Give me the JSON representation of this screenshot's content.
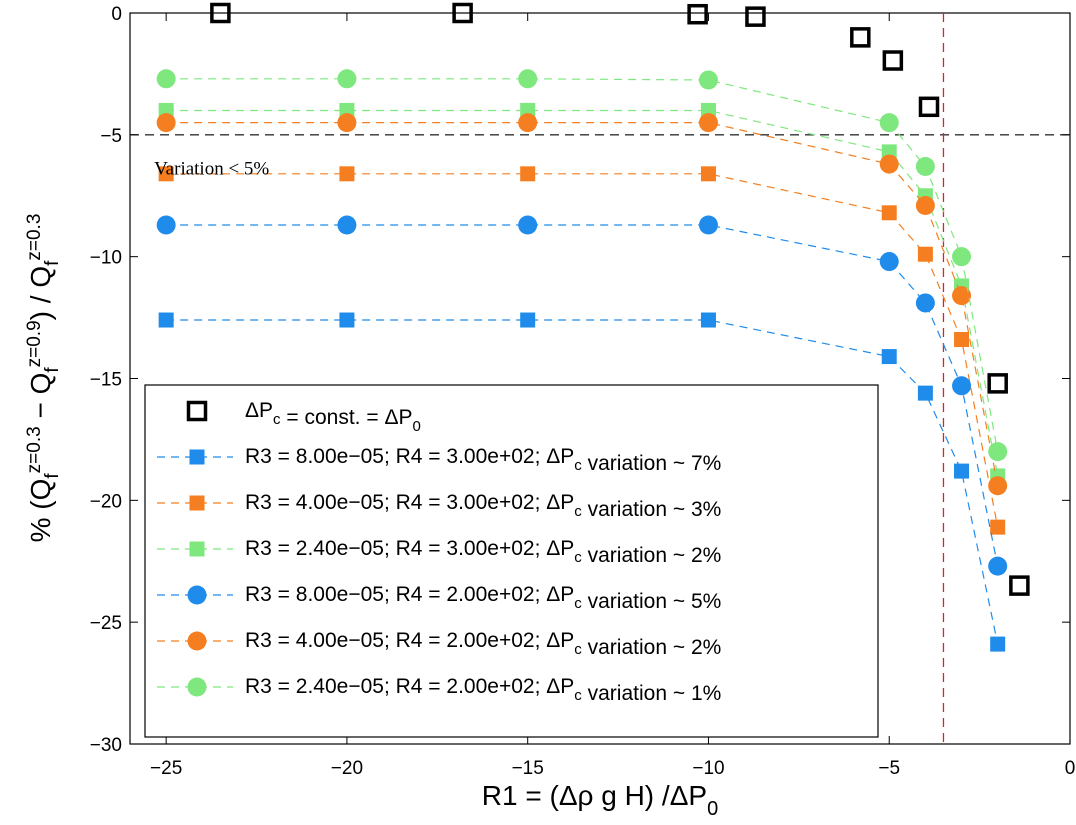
{
  "chart_data": {
    "type": "scatter",
    "xlabel": "R1 = (Δρ g H) /ΔP₀",
    "ylabel": "% (Qf z=0.3 − Qf z=0.9) / Qf z=0.3",
    "xlim": [
      -26,
      0
    ],
    "ylim": [
      -30,
      0
    ],
    "x_ticks": [
      -25,
      -20,
      -15,
      -10,
      -5,
      0
    ],
    "y_ticks": [
      0,
      -5,
      -10,
      -15,
      -20,
      -25,
      -30
    ],
    "x_tick_labels": [
      "−25",
      "−20",
      "−15",
      "−10",
      "−5",
      "0"
    ],
    "y_tick_labels": [
      "0",
      "−5",
      "−10",
      "−15",
      "−20",
      "−25",
      "−30"
    ],
    "grid": false,
    "legend_position": "bottom-left",
    "annotations": [
      {
        "text": "Variation < 5%",
        "x": -25.5,
        "y": -5.8
      }
    ],
    "reference_lines": [
      {
        "orientation": "horizontal",
        "value": -5,
        "color": "#333333",
        "style": "dashed"
      },
      {
        "orientation": "vertical",
        "value": -3.5,
        "color": "#d62728",
        "style": "dashed"
      }
    ],
    "series": [
      {
        "name": "ΔPc = const. = ΔP0",
        "marker": "open-square",
        "color": "#000000",
        "line": false,
        "x": [
          -23.5,
          -16.8,
          -10.3,
          -8.7,
          -5.8,
          -4.9,
          -3.9,
          -2.0,
          -1.4
        ],
        "y": [
          0.0,
          0.0,
          -0.05,
          -0.15,
          -1.0,
          -1.95,
          -3.85,
          -15.2,
          -23.5
        ]
      },
      {
        "name": "R3 = 8.00e−05; R4 = 3.00e+02; ΔPc variation ~ 7%",
        "marker": "square",
        "color": "#1f8ceb",
        "x": [
          -25,
          -20,
          -15,
          -10,
          -5,
          -4,
          -3,
          -2
        ],
        "y": [
          -12.6,
          -12.6,
          -12.6,
          -12.6,
          -14.1,
          -15.6,
          -18.8,
          -25.9
        ]
      },
      {
        "name": "R3 = 4.00e−05; R4 = 3.00e+02; ΔPc variation ~ 3%",
        "marker": "square",
        "color": "#f57f20",
        "x": [
          -25,
          -20,
          -15,
          -10,
          -5,
          -4,
          -3,
          -2
        ],
        "y": [
          -6.6,
          -6.6,
          -6.6,
          -6.6,
          -8.2,
          -9.9,
          -13.4,
          -21.1
        ]
      },
      {
        "name": "R3 = 2.40e−05; R4 = 3.00e+02; ΔPc variation ~ 2%",
        "marker": "square",
        "color": "#7ee87e",
        "x": [
          -25,
          -20,
          -15,
          -10,
          -5,
          -4,
          -3,
          -2
        ],
        "y": [
          -4.0,
          -4.0,
          -4.0,
          -4.0,
          -5.7,
          -7.5,
          -11.2,
          -19.0
        ]
      },
      {
        "name": "R3 = 8.00e−05; R4 = 2.00e+02; ΔPc variation ~ 5%",
        "marker": "circle",
        "color": "#1f8ceb",
        "x": [
          -25,
          -20,
          -15,
          -10,
          -5,
          -4,
          -3,
          -2
        ],
        "y": [
          -8.7,
          -8.7,
          -8.7,
          -8.7,
          -10.2,
          -11.9,
          -15.3,
          -22.7
        ]
      },
      {
        "name": "R3 = 4.00e−05; R4 = 2.00e+02; ΔPc variation ~ 2%",
        "marker": "circle",
        "color": "#f57f20",
        "x": [
          -25,
          -20,
          -15,
          -10,
          -5,
          -4,
          -3,
          -2
        ],
        "y": [
          -4.5,
          -4.5,
          -4.5,
          -4.5,
          -6.2,
          -7.9,
          -11.6,
          -19.4
        ]
      },
      {
        "name": "R3 = 2.40e−05; R4 = 2.00e+02; ΔPc variation ~ 1%",
        "marker": "circle",
        "color": "#7ee87e",
        "x": [
          -25,
          -20,
          -15,
          -10,
          -5,
          -4,
          -3,
          -2
        ],
        "y": [
          -2.7,
          -2.7,
          -2.7,
          -2.75,
          -4.5,
          -6.3,
          -10.0,
          -18.0
        ]
      }
    ]
  }
}
